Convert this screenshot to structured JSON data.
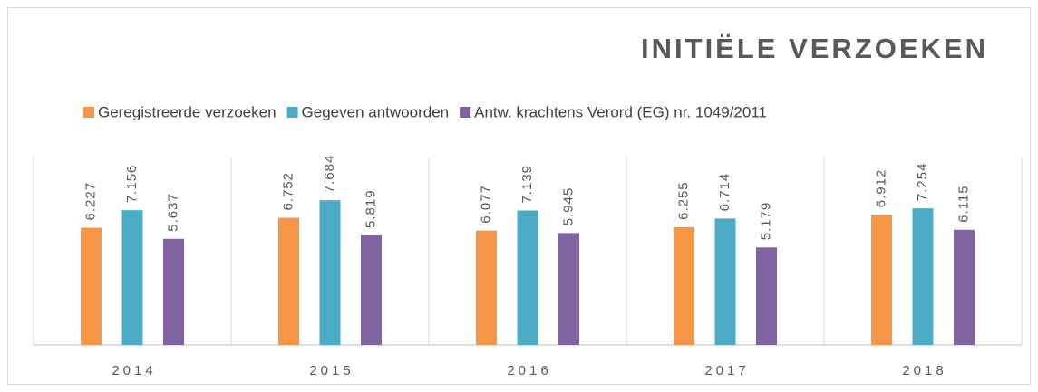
{
  "chart_data": {
    "type": "bar",
    "title": "INITIËLE VERZOEKEN",
    "categories": [
      "2014",
      "2015",
      "2016",
      "2017",
      "2018"
    ],
    "series": [
      {
        "name": "Geregistreerde verzoeken",
        "color": "#f79646",
        "values": [
          6227,
          6752,
          6077,
          6255,
          6912
        ],
        "value_labels": [
          "6.227",
          "6.752",
          "6.077",
          "6.255",
          "6.912"
        ]
      },
      {
        "name": "Gegeven antwoorden",
        "color": "#4bacc6",
        "values": [
          7156,
          7684,
          7139,
          6714,
          7254
        ],
        "value_labels": [
          "7.156",
          "7.684",
          "7.139",
          "6.714",
          "7.254"
        ]
      },
      {
        "name": "Antw. krachtens Verord (EG) nr. 1049/2011",
        "color": "#8064a2",
        "values": [
          5637,
          5819,
          5945,
          5179,
          6115
        ],
        "value_labels": [
          "5.637",
          "5.819",
          "5.945",
          "5.179",
          "6.115"
        ]
      }
    ],
    "ylim": [
      0,
      10000
    ],
    "legend": "top"
  }
}
